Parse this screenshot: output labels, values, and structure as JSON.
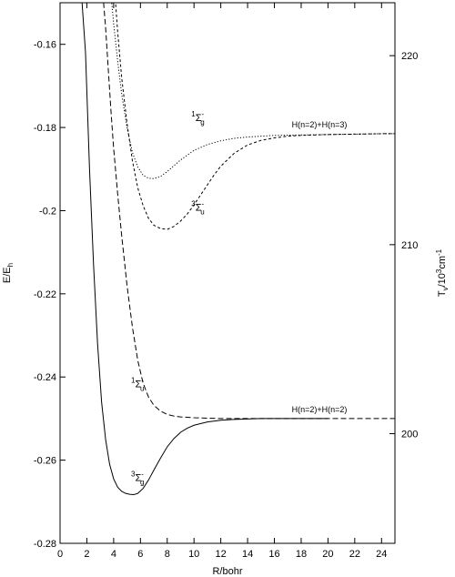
{
  "chart_data": {
    "type": "line",
    "title": "",
    "xlabel": "R/bohr",
    "ylabel_left": "E/E",
    "ylabel_left_sub": "h",
    "ylabel_right": "T",
    "ylabel_right_sub": "v",
    "ylabel_right_rest": "/10",
    "ylabel_right_sup": "3",
    "ylabel_right_unit": "cm",
    "ylabel_right_unit_sup": "-1",
    "xlim": [
      0,
      25
    ],
    "ylim": [
      -0.28,
      -0.15
    ],
    "y2lim": [
      194.2,
      222.8
    ],
    "xticks": [
      0,
      2,
      4,
      6,
      8,
      10,
      12,
      14,
      16,
      18,
      20,
      22,
      24
    ],
    "yticks": [
      -0.28,
      -0.26,
      -0.24,
      -0.22,
      -0.2,
      -0.18,
      -0.16
    ],
    "ytick_labels": [
      "-0.28",
      "-0.26",
      "-0.24",
      "-0.22",
      "-0.2",
      "-0.18",
      "-0.16"
    ],
    "y2ticks": [
      200,
      210,
      220
    ],
    "y2tick_labels": [
      "200",
      "210",
      "220"
    ],
    "grid": false,
    "legend": "none",
    "series": [
      {
        "label_sup": "3",
        "label_main": "Σ",
        "label_sub": "g",
        "label_sup2": "-",
        "label_at": [
          5.3,
          -0.265
        ],
        "style": "solid",
        "x": [
          1.6,
          1.9,
          2.2,
          2.5,
          2.8,
          3.1,
          3.4,
          3.7,
          4.0,
          4.3,
          4.6,
          4.9,
          5.2,
          5.5,
          5.8,
          6.2,
          6.6,
          7.0,
          7.5,
          8.0,
          8.5,
          9.0,
          9.5,
          10.0,
          11.0,
          12.0,
          13.0,
          14.0,
          15.0,
          16.0,
          17.0,
          18.0,
          19.0,
          20.0
        ],
        "y": [
          -0.148,
          -0.162,
          -0.19,
          -0.213,
          -0.232,
          -0.246,
          -0.255,
          -0.261,
          -0.2645,
          -0.2665,
          -0.2675,
          -0.268,
          -0.2682,
          -0.2683,
          -0.268,
          -0.2668,
          -0.2648,
          -0.2624,
          -0.2595,
          -0.2568,
          -0.2548,
          -0.2533,
          -0.2523,
          -0.2516,
          -0.2508,
          -0.2504,
          -0.2502,
          -0.2501,
          -0.25,
          -0.25,
          -0.25,
          -0.25,
          -0.25,
          -0.25
        ]
      },
      {
        "label_sup": "1",
        "label_main": "Σ",
        "label_sub": "u",
        "label_sup2": "-",
        "label_at": [
          5.3,
          -0.2425
        ],
        "style": "dashed",
        "x": [
          3.2,
          3.4,
          3.6,
          3.8,
          4.0,
          4.3,
          4.6,
          5.0,
          5.4,
          5.8,
          6.2,
          6.6,
          7.0,
          7.5,
          8.0,
          8.5,
          9.0,
          9.5,
          10.0,
          11.0,
          12.0,
          13.0,
          14.0,
          16.0,
          18.0,
          20.0,
          22.0,
          24.0,
          25.0
        ],
        "y": [
          -0.148,
          -0.156,
          -0.166,
          -0.176,
          -0.185,
          -0.196,
          -0.206,
          -0.218,
          -0.228,
          -0.236,
          -0.2415,
          -0.2448,
          -0.2468,
          -0.2482,
          -0.249,
          -0.2494,
          -0.2496,
          -0.2497,
          -0.2498,
          -0.2499,
          -0.25,
          -0.25,
          -0.25,
          -0.25,
          -0.25,
          -0.25,
          -0.25,
          -0.25,
          -0.25
        ]
      },
      {
        "label_sup": "1",
        "label_main": "Σ",
        "label_sub": "g",
        "label_sup2": "-",
        "label_at": [
          9.8,
          -0.1785
        ],
        "style": "dotted",
        "x": [
          3.8,
          4.0,
          4.3,
          4.6,
          5.0,
          5.4,
          5.8,
          6.2,
          6.6,
          7.0,
          7.5,
          8.0,
          8.5,
          9.0,
          10.0,
          11.0,
          12.0,
          13.0,
          14.0,
          16.0,
          18.0,
          20.0,
          22.0,
          24.0,
          25.0
        ],
        "y": [
          -0.148,
          -0.155,
          -0.164,
          -0.172,
          -0.18,
          -0.186,
          -0.1895,
          -0.1915,
          -0.1922,
          -0.1923,
          -0.1918,
          -0.1906,
          -0.1892,
          -0.1878,
          -0.1855,
          -0.1841,
          -0.1832,
          -0.1826,
          -0.1823,
          -0.1819,
          -0.1818,
          -0.1817,
          -0.1816,
          -0.1815,
          -0.1815
        ]
      },
      {
        "label_sup": "3",
        "label_main": "Σ",
        "label_sub": "u",
        "label_sup2": "-",
        "label_at": [
          9.8,
          -0.2
        ],
        "style": "short-dashed",
        "x": [
          4.1,
          4.3,
          4.6,
          5.0,
          5.4,
          5.8,
          6.2,
          6.6,
          7.0,
          7.5,
          8.0,
          8.5,
          9.0,
          9.5,
          10.0,
          10.5,
          11.0,
          11.5,
          12.0,
          13.0,
          14.0,
          15.0,
          16.0,
          17.0,
          18.0,
          20.0,
          22.0,
          24.0,
          25.0
        ],
        "y": [
          -0.148,
          -0.157,
          -0.168,
          -0.179,
          -0.188,
          -0.1945,
          -0.1988,
          -0.2018,
          -0.2035,
          -0.2043,
          -0.2045,
          -0.2038,
          -0.2025,
          -0.2008,
          -0.1986,
          -0.1962,
          -0.1938,
          -0.1914,
          -0.1893,
          -0.1862,
          -0.1842,
          -0.1831,
          -0.1825,
          -0.1821,
          -0.1819,
          -0.1817,
          -0.1816,
          -0.1815,
          -0.1815
        ]
      }
    ],
    "annotations": [
      {
        "text": "H(n=2)+H(n=3)",
        "at": [
          17.3,
          -0.18
        ]
      },
      {
        "text": "H(n=2)+H(n=2)",
        "at": [
          17.3,
          -0.2485
        ]
      }
    ]
  }
}
